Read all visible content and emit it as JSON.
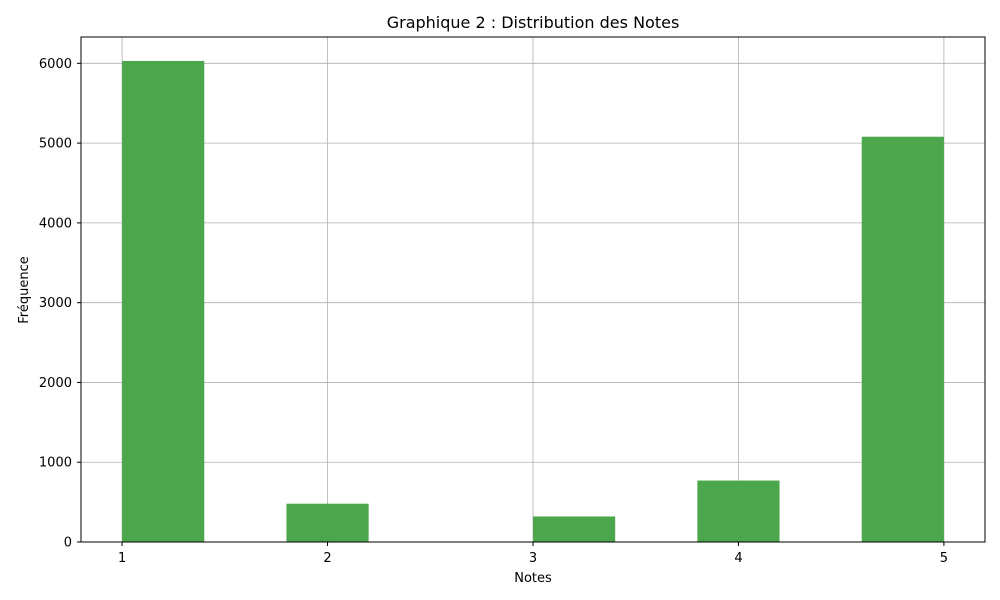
{
  "chart_data": {
    "type": "bar",
    "title": "Graphique 2 : Distribution des Notes",
    "xlabel": "Notes",
    "ylabel": "Fréquence",
    "xlim": [
      0.8,
      5.2
    ],
    "ylim": [
      0,
      6330
    ],
    "xticks": [
      1,
      2,
      3,
      4,
      5
    ],
    "yticks": [
      0,
      1000,
      2000,
      3000,
      4000,
      5000,
      6000
    ],
    "grid": true,
    "bar_color": "#4ca64c",
    "bins": [
      {
        "x0": 1.0,
        "x1": 1.4,
        "value": 6030
      },
      {
        "x0": 1.8,
        "x1": 2.2,
        "value": 480
      },
      {
        "x0": 2.2,
        "x1": 2.6,
        "value": 0
      },
      {
        "x0": 2.6,
        "x1": 3.0,
        "value": 0
      },
      {
        "x0": 3.0,
        "x1": 3.4,
        "value": 320
      },
      {
        "x0": 3.8,
        "x1": 4.2,
        "value": 770
      },
      {
        "x0": 4.6,
        "x1": 5.0,
        "value": 5080
      }
    ]
  }
}
